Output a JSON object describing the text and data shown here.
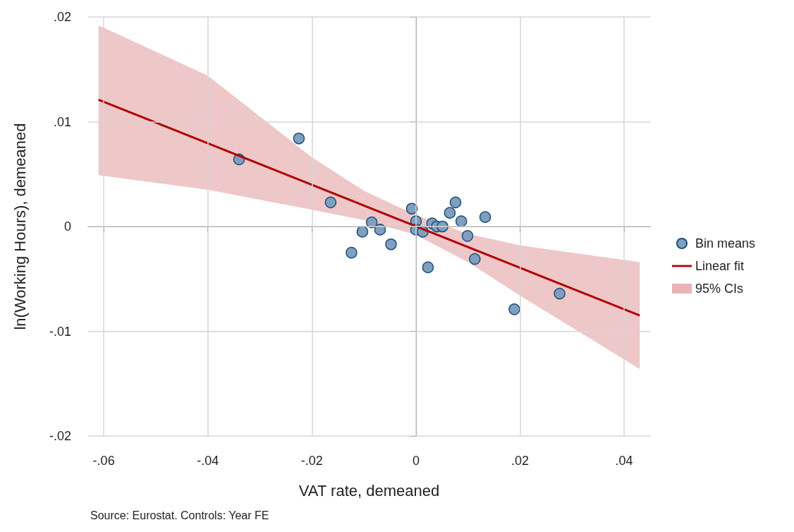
{
  "chart_data": {
    "type": "scatter",
    "xlabel": "VAT rate, demeaned",
    "ylabel": "ln(Working Hours), demeaned",
    "annotations": [
      "Source: Eurostat. Controls: Year FE"
    ],
    "xlim": [
      -0.063,
      0.045
    ],
    "ylim": [
      -0.02,
      0.02
    ],
    "xticks": [
      {
        "value": -0.06,
        "label": "-.06"
      },
      {
        "value": -0.04,
        "label": "-.04"
      },
      {
        "value": -0.02,
        "label": "-.02"
      },
      0,
      {
        "value": 0.02,
        "label": ".02"
      },
      {
        "value": 0.04,
        "label": ".04"
      }
    ],
    "yticks": [
      {
        "value": -0.02,
        "label": "-.02"
      },
      {
        "value": -0.01,
        "label": "-.01"
      },
      0,
      {
        "value": 0.01,
        "label": ".01"
      },
      {
        "value": 0.02,
        "label": ".02"
      }
    ],
    "grid": true,
    "legend": "right",
    "marker": "circle",
    "series": [
      {
        "name": "Bin means",
        "color": "#7f9fbf",
        "x": [
          -0.034,
          -0.0225,
          -0.0164,
          -0.0124,
          -0.0103,
          -0.0085,
          -0.0069,
          -0.0048,
          -0.0008,
          0,
          0,
          0.0013,
          0.0023,
          0.0031,
          0.004,
          0.0051,
          0.0065,
          0.0076,
          0.0087,
          0.0099,
          0.0113,
          0.0133,
          0.0189,
          0.0276
        ],
        "values": [
          0.0064,
          0.0084,
          0.0023,
          -0.0025,
          -0.0005,
          0.0004,
          -0.0003,
          -0.0017,
          0.0017,
          0.0005,
          -0.0003,
          -0.0005,
          -0.0039,
          0.0003,
          0,
          0,
          0.0013,
          0.0023,
          0.0005,
          -0.0009,
          -0.0031,
          0.0009,
          -0.0079,
          -0.0064
        ]
      },
      {
        "name": "Linear fit",
        "type": "line",
        "color": "#b20000",
        "line_style": "solid",
        "marker": "none",
        "x": [
          -0.061,
          0.043
        ],
        "values": [
          0.0121,
          -0.0085
        ]
      },
      {
        "name": "95% CIs",
        "type": "area",
        "color": "#e8b4b6",
        "x": [
          -0.061,
          -0.04,
          -0.02,
          -0.01,
          0,
          0.01,
          0.02,
          0.043
        ],
        "values": [
          null,
          null,
          null,
          null,
          null,
          null,
          null,
          null
        ],
        "lower": [
          0.0049,
          0.0035,
          0.0016,
          0.0006,
          -0.0008,
          -0.0034,
          -0.0066,
          -0.0136
        ],
        "upper": [
          0.0192,
          0.0144,
          0.0066,
          0.0034,
          0.0011,
          -0.0007,
          -0.0018,
          -0.0034
        ]
      }
    ]
  }
}
